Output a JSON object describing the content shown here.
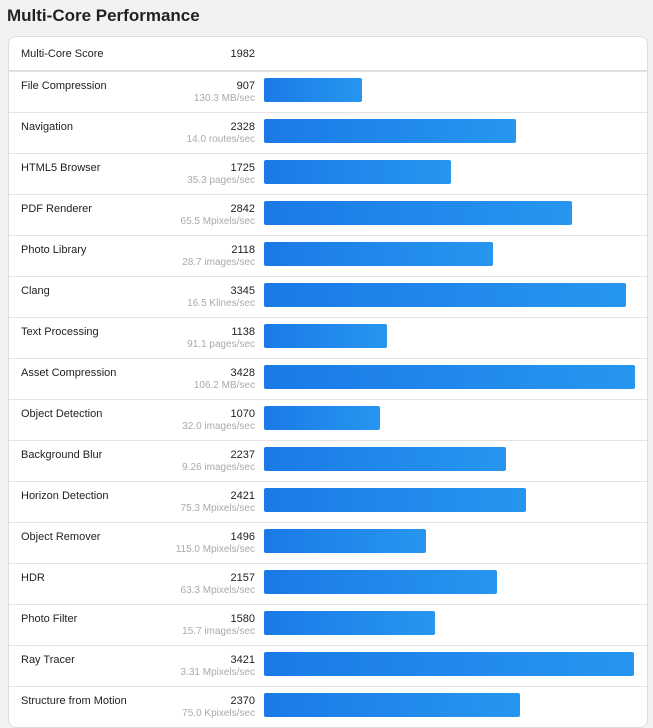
{
  "title": "Multi-Core Performance",
  "summary": {
    "label": "Multi-Core Score",
    "score": "1982"
  },
  "colors": {
    "bar_start": "#1a7ae8",
    "bar_end": "#2796ef"
  },
  "chart_data": {
    "type": "bar",
    "orientation": "horizontal",
    "title": "Multi-Core Performance",
    "categories": [
      "File Compression",
      "Navigation",
      "HTML5 Browser",
      "PDF Renderer",
      "Photo Library",
      "Clang",
      "Text Processing",
      "Asset Compression",
      "Object Detection",
      "Background Blur",
      "Horizon Detection",
      "Object Remover",
      "HDR",
      "Photo Filter",
      "Ray Tracer",
      "Structure from Motion"
    ],
    "values": [
      907,
      2328,
      1725,
      2842,
      2118,
      3345,
      1138,
      3428,
      1070,
      2237,
      2421,
      1496,
      2157,
      1580,
      3421,
      2370
    ],
    "throughput": [
      "130.3 MB/sec",
      "14.0 routes/sec",
      "35.3 pages/sec",
      "65.5 Mpixels/sec",
      "28.7 images/sec",
      "16.5 Klines/sec",
      "91.1 pages/sec",
      "106.2 MB/sec",
      "32.0 images/sec",
      "9.26 images/sec",
      "75.3 Mpixels/sec",
      "115.0 Mpixels/sec",
      "63.3 Mpixels/sec",
      "15.7 images/sec",
      "3.31 Mpixels/sec",
      "75.0 Kpixels/sec"
    ],
    "grid": false,
    "legend": "none"
  }
}
